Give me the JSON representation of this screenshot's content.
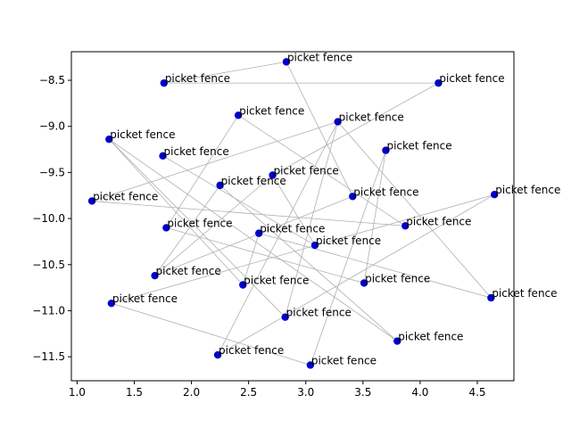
{
  "chart_data": {
    "type": "scatter",
    "title": "",
    "xlabel": "",
    "ylabel": "",
    "xlim": [
      0.95,
      4.82
    ],
    "ylim": [
      -11.76,
      -8.19
    ],
    "xticks": [
      1.0,
      1.5,
      2.0,
      2.5,
      3.0,
      3.5,
      4.0,
      4.5
    ],
    "yticks": [
      -8.5,
      -9.0,
      -9.5,
      -10.0,
      -10.5,
      -11.0,
      -11.5
    ],
    "xtick_labels": [
      "1.0",
      "1.5",
      "2.0",
      "2.5",
      "3.0",
      "3.5",
      "4.0",
      "4.5"
    ],
    "ytick_labels": [
      "−8.5",
      "−9.0",
      "−9.5",
      "−10.0",
      "−10.5",
      "−11.0",
      "−11.5"
    ],
    "grid": false,
    "point_color": "#0000cc",
    "line_color": "#b0b0b0",
    "points": [
      {
        "x": 2.83,
        "y": -8.3,
        "label": "picket fence"
      },
      {
        "x": 1.76,
        "y": -8.53,
        "label": "picket fence"
      },
      {
        "x": 4.16,
        "y": -8.53,
        "label": "picket fence"
      },
      {
        "x": 2.41,
        "y": -8.88,
        "label": "picket fence"
      },
      {
        "x": 3.28,
        "y": -8.95,
        "label": "picket fence"
      },
      {
        "x": 1.28,
        "y": -9.14,
        "label": "picket fence"
      },
      {
        "x": 3.7,
        "y": -9.26,
        "label": "picket fence"
      },
      {
        "x": 1.75,
        "y": -9.32,
        "label": "picket fence"
      },
      {
        "x": 2.71,
        "y": -9.53,
        "label": "picket fence"
      },
      {
        "x": 2.25,
        "y": -9.64,
        "label": "picket fence"
      },
      {
        "x": 4.65,
        "y": -9.74,
        "label": "picket fence"
      },
      {
        "x": 3.41,
        "y": -9.76,
        "label": "picket fence"
      },
      {
        "x": 1.13,
        "y": -9.81,
        "label": "picket fence"
      },
      {
        "x": 3.87,
        "y": -10.08,
        "label": "picket fence"
      },
      {
        "x": 1.78,
        "y": -10.1,
        "label": "picket fence"
      },
      {
        "x": 2.59,
        "y": -10.16,
        "label": "picket fence"
      },
      {
        "x": 3.08,
        "y": -10.29,
        "label": "picket fence"
      },
      {
        "x": 1.68,
        "y": -10.62,
        "label": "picket fence"
      },
      {
        "x": 3.51,
        "y": -10.7,
        "label": "picket fence"
      },
      {
        "x": 2.45,
        "y": -10.72,
        "label": "picket fence"
      },
      {
        "x": 4.62,
        "y": -10.86,
        "label": "picket fence"
      },
      {
        "x": 1.3,
        "y": -10.92,
        "label": "picket fence"
      },
      {
        "x": 2.82,
        "y": -11.07,
        "label": "picket fence"
      },
      {
        "x": 3.8,
        "y": -11.33,
        "label": "picket fence"
      },
      {
        "x": 2.23,
        "y": -11.48,
        "label": "picket fence"
      },
      {
        "x": 3.04,
        "y": -11.59,
        "label": "picket fence"
      }
    ],
    "connections": [
      [
        1,
        2
      ],
      [
        0,
        1
      ],
      [
        0,
        11
      ],
      [
        11,
        17
      ],
      [
        17,
        9
      ],
      [
        9,
        23
      ],
      [
        23,
        5
      ],
      [
        5,
        22
      ],
      [
        22,
        4
      ],
      [
        4,
        12
      ],
      [
        12,
        13
      ],
      [
        3,
        13
      ],
      [
        3,
        14
      ],
      [
        14,
        18
      ],
      [
        18,
        6
      ],
      [
        6,
        25
      ],
      [
        25,
        21
      ],
      [
        21,
        10
      ],
      [
        10,
        24
      ],
      [
        24,
        4
      ],
      [
        4,
        20
      ],
      [
        8,
        16
      ],
      [
        16,
        7
      ],
      [
        15,
        20
      ],
      [
        15,
        19
      ],
      [
        19,
        5
      ],
      [
        2,
        8
      ],
      [
        8,
        17
      ]
    ]
  }
}
